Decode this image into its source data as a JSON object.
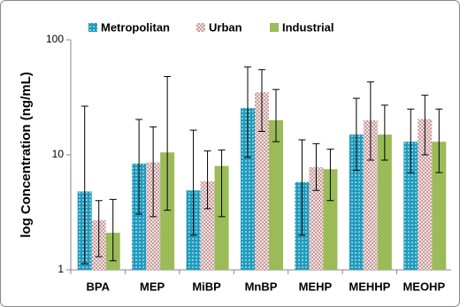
{
  "chart_data": {
    "type": "bar",
    "y_label": "log Concentration (ng/mL)",
    "log_scale": true,
    "categories": [
      "BPA",
      "MEP",
      "MiBP",
      "MnBP",
      "MEHP",
      "MEHHP",
      "MEOHP"
    ],
    "series": [
      {
        "name": "Metropolitan",
        "color": "#1f9bbd",
        "values": [
          4.8,
          8.4,
          4.9,
          25.5,
          5.8,
          15,
          13
        ],
        "error_high": [
          26.5,
          20.3,
          16.4,
          58,
          13.5,
          31,
          25
        ],
        "error_low": [
          1.13,
          3.05,
          2.0,
          9.5,
          2.0,
          7.3,
          7
        ]
      },
      {
        "name": "Urban",
        "color": "#c99a9a",
        "values": [
          2.7,
          8.6,
          5.9,
          35,
          7.8,
          20,
          20.5
        ],
        "error_high": [
          4.0,
          17.5,
          10.8,
          55,
          12.5,
          43,
          33
        ],
        "error_low": [
          1.3,
          2.9,
          3.4,
          16,
          4.9,
          9,
          10
        ]
      },
      {
        "name": "Industrial",
        "color": "#9bbb59",
        "values": [
          2.1,
          10.5,
          8.0,
          20,
          7.5,
          15,
          13
        ],
        "error_high": [
          4.1,
          48,
          11,
          37,
          11.2,
          27,
          25
        ],
        "error_low": [
          1.2,
          3.3,
          2.9,
          13,
          4.0,
          9,
          7
        ]
      }
    ],
    "ylim": [
      1,
      100
    ],
    "yticks": [
      1,
      10,
      100
    ],
    "legend": "top"
  }
}
